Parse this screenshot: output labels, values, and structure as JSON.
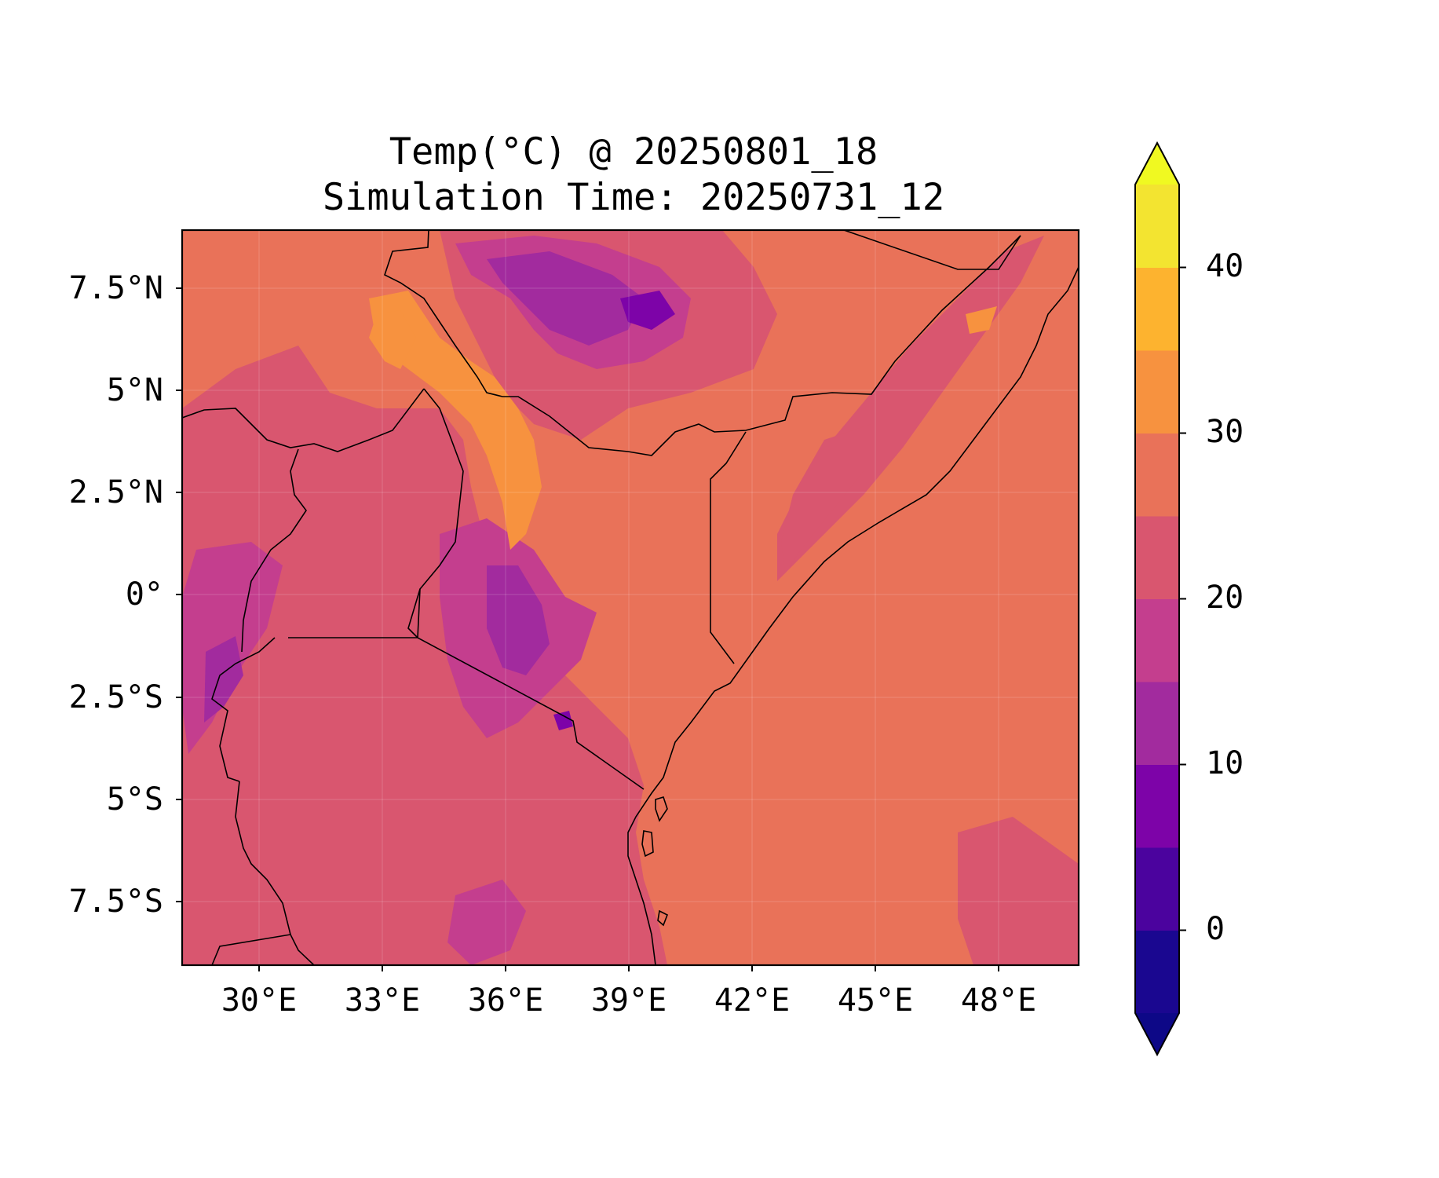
{
  "title_line1": "Temp(°C) @ 20250801_18",
  "title_line2": "Simulation Time: 20250731_12",
  "chart_data": {
    "type": "heatmap",
    "title": "Temp(°C) @ 20250801_18\nSimulation Time: 20250731_12",
    "variable": "Temp(°C)",
    "lon_range": [
      27.0,
      50.5
    ],
    "lat_range": [
      -9.0,
      9.0
    ],
    "x_ticks": [
      30,
      33,
      36,
      39,
      42,
      45,
      48
    ],
    "x_tick_labels": [
      "30°E",
      "33°E",
      "36°E",
      "39°E",
      "42°E",
      "45°E",
      "48°E"
    ],
    "y_ticks": [
      7.5,
      5,
      2.5,
      0,
      -2.5,
      -5,
      -7.5
    ],
    "y_tick_labels": [
      "7.5°N",
      "5°N",
      "2.5°N",
      "0°",
      "2.5°S",
      "5°S",
      "7.5°S"
    ],
    "grid": true,
    "colorbar": {
      "levels": [
        -5,
        0,
        5,
        10,
        15,
        20,
        25,
        30,
        35,
        40,
        45
      ],
      "tick_values": [
        0,
        10,
        20,
        30,
        40
      ],
      "tick_labels": [
        "0",
        "10",
        "20",
        "30",
        "40"
      ],
      "colors": [
        "#1a0790",
        "#4b039e",
        "#7d03a8",
        "#a22b9e",
        "#c43e8e",
        "#d9566f",
        "#e97259",
        "#f7923f",
        "#fdb32f",
        "#f3e430"
      ],
      "under_color": "#0d0887",
      "over_color": "#f0f921",
      "extend": "both"
    },
    "background_level_color": "#e97259"
  }
}
